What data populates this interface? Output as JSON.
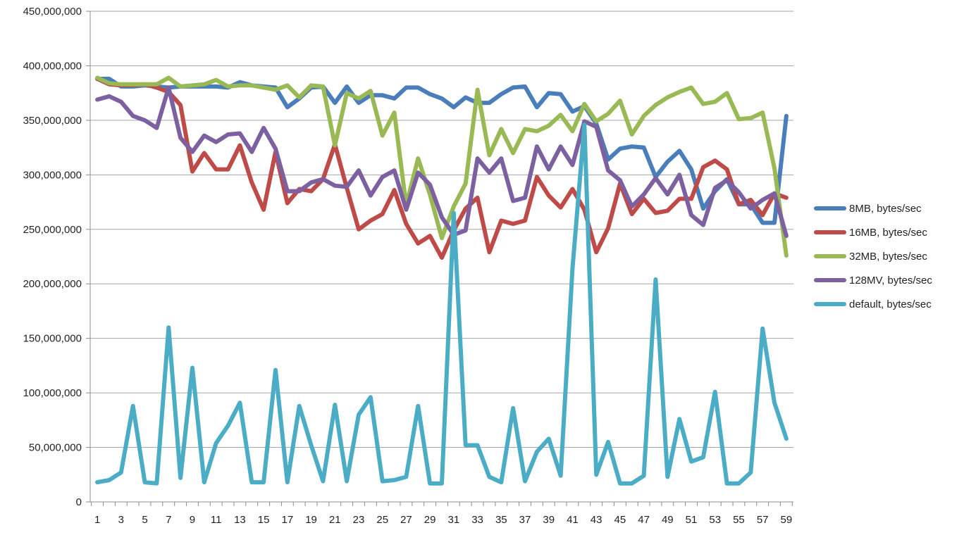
{
  "chart_data": {
    "type": "line",
    "title": "",
    "xlabel": "",
    "ylabel": "",
    "ylim": [
      0,
      450000000
    ],
    "y_ticks": [
      "0",
      "50,000,000",
      "100,000,000",
      "150,000,000",
      "200,000,000",
      "250,000,000",
      "300,000,000",
      "350,000,000",
      "400,000,000",
      "450,000,000"
    ],
    "x": [
      1,
      2,
      3,
      4,
      5,
      6,
      7,
      8,
      9,
      10,
      11,
      12,
      13,
      14,
      15,
      16,
      17,
      18,
      19,
      20,
      21,
      22,
      23,
      24,
      25,
      26,
      27,
      28,
      29,
      30,
      31,
      32,
      33,
      34,
      35,
      36,
      37,
      38,
      39,
      40,
      41,
      42,
      43,
      44,
      45,
      46,
      47,
      48,
      49,
      50,
      51,
      52,
      53,
      54,
      55,
      56,
      57,
      58,
      59
    ],
    "x_tick_labels": [
      "1",
      "3",
      "5",
      "7",
      "9",
      "11",
      "13",
      "15",
      "17",
      "19",
      "21",
      "23",
      "25",
      "27",
      "29",
      "31",
      "33",
      "35",
      "37",
      "39",
      "41",
      "43",
      "45",
      "47",
      "49",
      "51",
      "53",
      "55",
      "57",
      "59"
    ],
    "grid": "horizontal",
    "legend_position": "right",
    "series": [
      {
        "name": "8MB, bytes/sec",
        "color": "#4A7EBB",
        "values": [
          388,
          388,
          381,
          381,
          382,
          381,
          380,
          381,
          381,
          381,
          381,
          380,
          385,
          382,
          381,
          380,
          362,
          370,
          380,
          381,
          366,
          381,
          366,
          373,
          373,
          370,
          380,
          380,
          374,
          370,
          362,
          371,
          366,
          366,
          374,
          380,
          381,
          362,
          375,
          374,
          358,
          363,
          347,
          314,
          324,
          326,
          325,
          298,
          312,
          322,
          305,
          269,
          285,
          296,
          273,
          273,
          256,
          256,
          354
        ]
      },
      {
        "name": "16MB, bytes/sec",
        "color": "#BE4B48",
        "values": [
          388,
          383,
          382,
          382,
          383,
          380,
          376,
          364,
          303,
          320,
          305,
          305,
          327,
          293,
          268,
          321,
          274,
          287,
          285,
          296,
          328,
          288,
          250,
          258,
          264,
          286,
          255,
          237,
          244,
          224,
          249,
          269,
          279,
          229,
          258,
          255,
          258,
          298,
          281,
          270,
          287,
          268,
          229,
          251,
          292,
          264,
          278,
          265,
          267,
          278,
          278,
          307,
          313,
          305,
          273,
          277,
          263,
          283,
          279
        ]
      },
      {
        "name": "32MB, bytes/sec",
        "color": "#98B954",
        "values": [
          389,
          384,
          383,
          383,
          383,
          383,
          389,
          381,
          382,
          383,
          387,
          381,
          382,
          382,
          380,
          378,
          382,
          371,
          382,
          381,
          327,
          375,
          370,
          377,
          336,
          357,
          272,
          315,
          282,
          242,
          271,
          292,
          378,
          318,
          342,
          320,
          342,
          340,
          345,
          355,
          340,
          365,
          349,
          356,
          368,
          337,
          354,
          364,
          371,
          376,
          380,
          365,
          367,
          375,
          351,
          352,
          357,
          306,
          226
        ]
      },
      {
        "name": "128MV, bytes/sec",
        "color": "#7D60A0",
        "values": [
          369,
          372,
          367,
          354,
          350,
          343,
          380,
          334,
          321,
          336,
          330,
          337,
          338,
          321,
          343,
          324,
          285,
          285,
          293,
          296,
          290,
          289,
          304,
          281,
          298,
          304,
          268,
          302,
          291,
          261,
          245,
          249,
          315,
          302,
          315,
          276,
          279,
          326,
          305,
          326,
          309,
          349,
          344,
          304,
          295,
          271,
          282,
          297,
          282,
          300,
          263,
          254,
          288,
          295,
          284,
          269,
          277,
          283,
          244
        ]
      },
      {
        "name": "default, bytes/sec",
        "color": "#4BACC6",
        "values": [
          18,
          20,
          27,
          88,
          18,
          17,
          160,
          22,
          123,
          18,
          54,
          70,
          91,
          18,
          18,
          121,
          18,
          88,
          52,
          19,
          89,
          19,
          80,
          96,
          19,
          20,
          23,
          88,
          17,
          17,
          265,
          52,
          52,
          23,
          18,
          86,
          19,
          46,
          58,
          24,
          214,
          346,
          25,
          55,
          17,
          17,
          24,
          204,
          23,
          76,
          37,
          41,
          101,
          17,
          17,
          27,
          159,
          91,
          58
        ]
      }
    ]
  }
}
